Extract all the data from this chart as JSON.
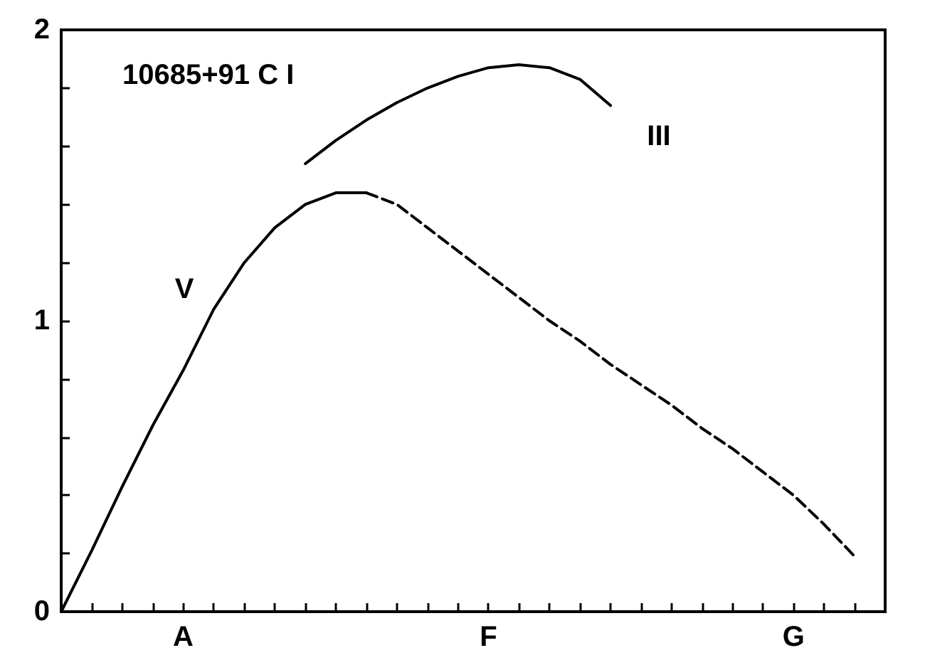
{
  "chart_data": {
    "type": "line",
    "annotations": [
      "10685+91 C I"
    ],
    "categories": [
      null,
      null,
      null,
      null,
      "A",
      null,
      null,
      null,
      null,
      null,
      null,
      null,
      null,
      null,
      "F",
      null,
      null,
      null,
      null,
      null,
      null,
      null,
      null,
      null,
      "G",
      null,
      null,
      null
    ],
    "ylim": [
      0,
      2
    ],
    "yticks": [
      0,
      {
        "value": 0.2,
        "label": null
      },
      {
        "value": 0.4,
        "label": null
      },
      {
        "value": 0.6,
        "label": null
      },
      {
        "value": 0.8,
        "label": null
      },
      1,
      {
        "value": 1.2,
        "label": null
      },
      {
        "value": 1.4,
        "label": null
      },
      {
        "value": 1.6,
        "label": null
      },
      {
        "value": 1.8,
        "label": null
      },
      2
    ],
    "grid": false,
    "marker": "none",
    "series": [
      {
        "name": "V",
        "color": "#000000",
        "line_style": "solid",
        "values": [
          0,
          0.21,
          0.43,
          0.64,
          0.83,
          1.04,
          1.2,
          1.32,
          1.4,
          1.44,
          1.44,
          null,
          null,
          null,
          null,
          null,
          null,
          null,
          null,
          null,
          null,
          null,
          null,
          null,
          null,
          null,
          null,
          null
        ]
      },
      {
        "color": "#000000",
        "line_style": "dashed",
        "values": [
          null,
          null,
          null,
          null,
          null,
          null,
          null,
          null,
          null,
          null,
          1.44,
          1.4,
          1.32,
          1.24,
          1.16,
          1.08,
          1.0,
          0.93,
          0.85,
          0.78,
          0.71,
          0.63,
          0.56,
          0.48,
          0.4,
          0.3,
          0.19,
          null
        ]
      },
      {
        "name": "III",
        "color": "#000000",
        "line_style": "solid",
        "values": [
          null,
          null,
          null,
          null,
          null,
          null,
          null,
          null,
          1.54,
          1.62,
          1.69,
          1.75,
          1.8,
          1.84,
          1.87,
          1.88,
          1.87,
          1.83,
          1.74,
          null,
          null,
          null,
          null,
          null,
          null,
          null,
          null,
          null
        ]
      }
    ]
  }
}
